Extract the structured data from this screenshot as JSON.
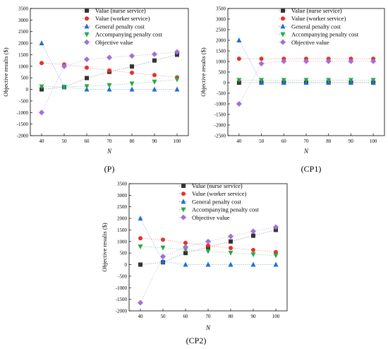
{
  "chart_data": [
    {
      "type": "scatter",
      "panel_label": "(P)",
      "xlabel": "N",
      "ylabel": "Objective results ($)",
      "x": [
        40,
        50,
        60,
        70,
        80,
        90,
        100
      ],
      "xlim": [
        35,
        105
      ],
      "ylim": [
        -2000,
        3500
      ],
      "yticks": [
        -2000,
        -1500,
        -1000,
        -500,
        0,
        500,
        1000,
        1500,
        2000,
        2500,
        3000,
        3500
      ],
      "legend_position": "top-right",
      "series": [
        {
          "name": "Value (nurse service)",
          "marker": "square",
          "color": "#333333",
          "values": [
            0,
            100,
            490,
            760,
            990,
            1250,
            1500
          ]
        },
        {
          "name": "Value (worker service)",
          "marker": "circle",
          "color": "#e8302a",
          "values": [
            1140,
            1080,
            940,
            820,
            720,
            620,
            520
          ]
        },
        {
          "name": "General penalty cost",
          "marker": "triangle-up",
          "color": "#1f6fd0",
          "values": [
            2000,
            100,
            0,
            0,
            0,
            0,
            0
          ]
        },
        {
          "name": "Accompanying penalty cost",
          "marker": "triangle-down",
          "color": "#2aa84a",
          "values": [
            120,
            110,
            130,
            180,
            250,
            330,
            430
          ]
        },
        {
          "name": "Objective value",
          "marker": "diamond",
          "color": "#a070d8",
          "values": [
            -1000,
            1000,
            1300,
            1380,
            1450,
            1520,
            1620
          ]
        }
      ]
    },
    {
      "type": "scatter",
      "panel_label": "(CP1)",
      "xlabel": "N",
      "ylabel": "Objective results ($)",
      "x": [
        40,
        50,
        60,
        70,
        80,
        90,
        100
      ],
      "xlim": [
        35,
        105
      ],
      "ylim": [
        -2500,
        3500
      ],
      "yticks": [
        -2500,
        -2000,
        -1500,
        -1000,
        -500,
        0,
        500,
        1000,
        1500,
        2000,
        2500,
        3000,
        3500
      ],
      "legend_position": "top-right",
      "series": [
        {
          "name": "Value (nurse service)",
          "marker": "square",
          "color": "#333333",
          "values": [
            0,
            0,
            0,
            0,
            0,
            0,
            0
          ]
        },
        {
          "name": "Value (worker service)",
          "marker": "circle",
          "color": "#e8302a",
          "values": [
            1130,
            1130,
            1130,
            1130,
            1130,
            1130,
            1130
          ]
        },
        {
          "name": "General penalty cost",
          "marker": "triangle-up",
          "color": "#1f6fd0",
          "values": [
            2000,
            0,
            0,
            0,
            0,
            0,
            0
          ]
        },
        {
          "name": "Accompanying penalty cost",
          "marker": "triangle-down",
          "color": "#2aa84a",
          "values": [
            120,
            120,
            120,
            120,
            120,
            120,
            120
          ]
        },
        {
          "name": "Objective value",
          "marker": "diamond",
          "color": "#a070d8",
          "values": [
            -1000,
            900,
            1010,
            1010,
            1010,
            1010,
            1010
          ]
        }
      ]
    },
    {
      "type": "scatter",
      "panel_label": "(CP2)",
      "xlabel": "N",
      "ylabel": "Objective results ($)",
      "x": [
        40,
        50,
        60,
        70,
        80,
        90,
        100
      ],
      "xlim": [
        35,
        105
      ],
      "ylim": [
        -2000,
        3500
      ],
      "yticks": [
        -2000,
        -1500,
        -1000,
        -500,
        0,
        500,
        1000,
        1500,
        2000,
        2500,
        3000,
        3500
      ],
      "legend_position": "top-right",
      "series": [
        {
          "name": "Value (nurse service)",
          "marker": "square",
          "color": "#333333",
          "values": [
            0,
            100,
            500,
            760,
            1000,
            1250,
            1500
          ]
        },
        {
          "name": "Value (worker service)",
          "marker": "circle",
          "color": "#e8302a",
          "values": [
            1140,
            1080,
            940,
            820,
            720,
            630,
            540
          ]
        },
        {
          "name": "General penalty cost",
          "marker": "triangle-up",
          "color": "#1f6fd0",
          "values": [
            2000,
            130,
            0,
            0,
            0,
            0,
            0
          ]
        },
        {
          "name": "Accompanying penalty cost",
          "marker": "triangle-down",
          "color": "#2aa84a",
          "values": [
            780,
            730,
            650,
            580,
            510,
            440,
            400
          ]
        },
        {
          "name": "Objective value",
          "marker": "diamond",
          "color": "#a070d8",
          "values": [
            -1650,
            350,
            760,
            1000,
            1220,
            1440,
            1620
          ]
        }
      ]
    }
  ]
}
